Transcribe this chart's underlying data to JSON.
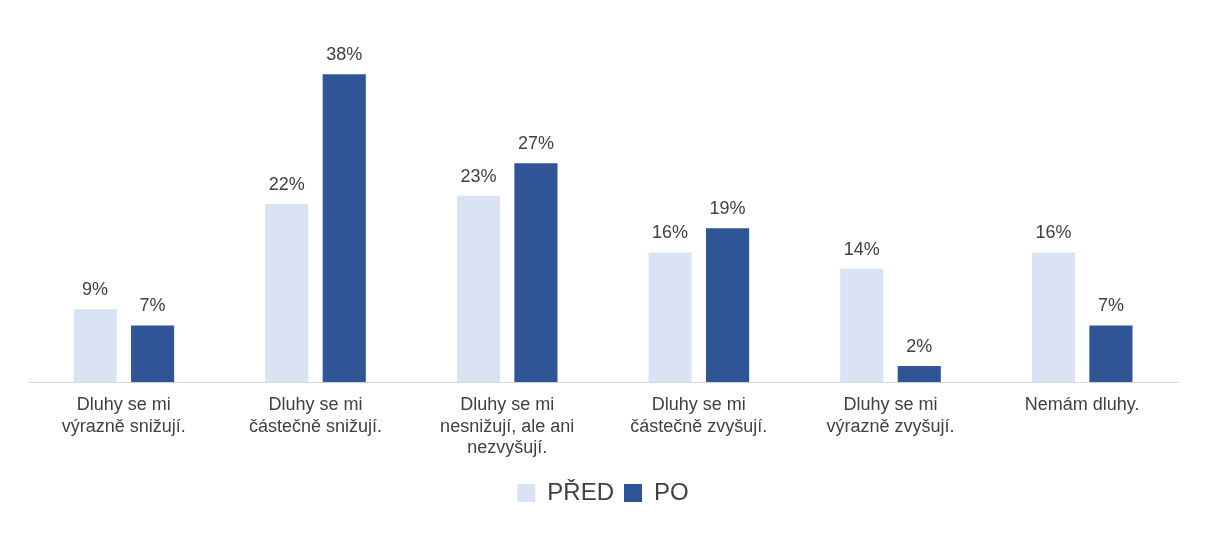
{
  "chart_data": {
    "type": "bar",
    "categories": [
      "Dluhy se mi výrazně snižují.",
      "Dluhy se mi částečně snižují.",
      "Dluhy se mi nesnižují, ale ani nezvyšují.",
      "Dluhy se mi částečně zvyšují.",
      "Dluhy se mi výrazně zvyšují.",
      "Nemám dluhy."
    ],
    "series": [
      {
        "name": "PŘED",
        "color": "#dae3f3",
        "values": [
          9,
          22,
          23,
          16,
          14,
          16
        ],
        "value_labels": [
          "9%",
          "22%",
          "23%",
          "16%",
          "14%",
          "16%"
        ]
      },
      {
        "name": "PO",
        "color": "#2f5597",
        "values": [
          7,
          38,
          27,
          19,
          2,
          7
        ],
        "value_labels": [
          "7%",
          "38%",
          "27%",
          "19%",
          "2%",
          "7%"
        ]
      }
    ],
    "legend": "bottom",
    "grid": false
  }
}
